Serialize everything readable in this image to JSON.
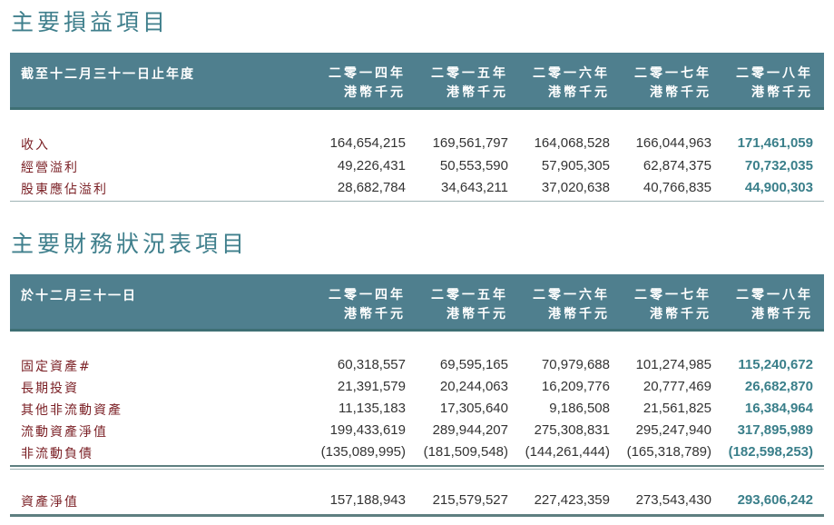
{
  "section1": {
    "title": "主要損益項目",
    "header_label": "截至十二月三十一日止年度",
    "years": [
      "二零一四年",
      "二零一五年",
      "二零一六年",
      "二零一七年",
      "二零一八年"
    ],
    "unit": "港幣千元",
    "rows": [
      {
        "label": "收入",
        "values": [
          "164,654,215",
          "169,561,797",
          "164,068,528",
          "166,044,963",
          "171,461,059"
        ]
      },
      {
        "label": "經營溢利",
        "values": [
          "49,226,431",
          "50,553,590",
          "57,905,305",
          "62,874,375",
          "70,732,035"
        ]
      },
      {
        "label": "股東應佔溢利",
        "values": [
          "28,682,784",
          "34,643,211",
          "37,020,638",
          "40,766,835",
          "44,900,303"
        ]
      }
    ]
  },
  "section2": {
    "title": "主要財務狀況表項目",
    "header_label": "於十二月三十一日",
    "years": [
      "二零一四年",
      "二零一五年",
      "二零一六年",
      "二零一七年",
      "二零一八年"
    ],
    "unit": "港幣千元",
    "rows": [
      {
        "label": "固定資產#",
        "values": [
          "60,318,557",
          "69,595,165",
          "70,979,688",
          "101,274,985",
          "115,240,672"
        ]
      },
      {
        "label": "長期投資",
        "values": [
          "21,391,579",
          "20,244,063",
          "16,209,776",
          "20,777,469",
          "26,682,870"
        ]
      },
      {
        "label": "其他非流動資產",
        "values": [
          "11,135,183",
          "17,305,640",
          "9,186,508",
          "21,561,825",
          "16,384,964"
        ]
      },
      {
        "label": "流動資產淨值",
        "values": [
          "199,433,619",
          "289,944,207",
          "275,308,831",
          "295,247,940",
          "317,895,989"
        ]
      },
      {
        "label": "非流動負債",
        "values": [
          "(135,089,995)",
          "(181,509,548)",
          "(144,261,444)",
          "(165,318,789)",
          "(182,598,253)"
        ]
      }
    ],
    "total": {
      "label": "資產淨值",
      "values": [
        "157,188,943",
        "215,579,527",
        "227,423,359",
        "273,543,430",
        "293,606,242"
      ]
    }
  },
  "colors": {
    "header_bg": "#4f7f8e",
    "title": "#3f7f8c",
    "label": "#7a1f24",
    "highlight": "#3a7f8a"
  }
}
